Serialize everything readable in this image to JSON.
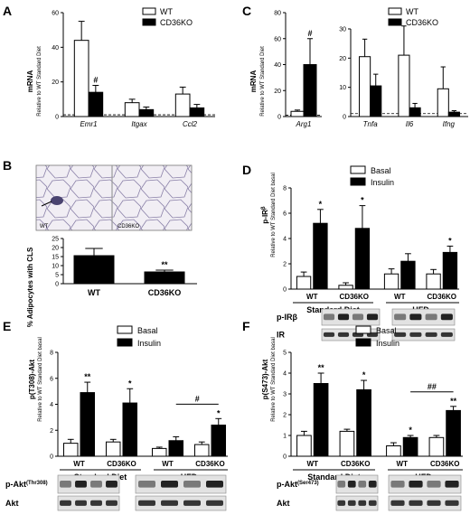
{
  "panels": {
    "A": {
      "letter": "A",
      "ylabel": "mRNA",
      "ylabel2": "Relative to WT Standard Diet",
      "legend": [
        "WT",
        "CD36KO"
      ]
    },
    "B": {
      "letter": "B",
      "ylabel": "% Adipocytes with CLS",
      "micro_wt": "WT",
      "micro_ko": "CD36KO"
    },
    "C": {
      "letter": "C",
      "ylabel": "mRNA",
      "ylabel2": "Relative to WT Standard Diet",
      "legend": [
        "WT",
        "CD36KO"
      ]
    },
    "D": {
      "letter": "D",
      "ylabel": "p-IR",
      "ylabel_sup": "β",
      "ylabel2": "Relative to WT Standard Diet basal",
      "legend": [
        "Basal",
        "Insulin"
      ],
      "groups": [
        "Standard Diet",
        "HFD"
      ],
      "blots": [
        "p-IRβ",
        "IR"
      ]
    },
    "E": {
      "letter": "E",
      "ylabel": "p(T308)-Akt",
      "ylabel2": "Relative to WT Standard Diet basal",
      "legend": [
        "Basal",
        "Insulin"
      ],
      "groups": [
        "Standard Diet",
        "HFD"
      ],
      "blots": [
        "p-Akt",
        "Akt"
      ],
      "blot_sup": "(Thr308)"
    },
    "F": {
      "letter": "F",
      "ylabel": "p(S473)-Akt",
      "ylabel2": "Relative to WT Standard Diet basal",
      "legend": [
        "Basal",
        "Insulin"
      ],
      "groups": [
        "Standard Diet",
        "HFD"
      ],
      "blots": [
        "p-Akt",
        "Akt"
      ],
      "blot_sup": "(Ser473)"
    }
  },
  "colors": {
    "wt": "#ffffff",
    "ko": "#000000",
    "stroke": "#000000",
    "blot_bg": "#e2e2e2",
    "band": "#222222"
  },
  "chart_data": [
    {
      "panel": "A",
      "type": "bar",
      "categories": [
        "Emr1",
        "Itgax",
        "Ccl2"
      ],
      "series": [
        {
          "name": "WT",
          "values": [
            44,
            8,
            13
          ],
          "errors": [
            11,
            2,
            4
          ]
        },
        {
          "name": "CD36KO",
          "values": [
            14,
            4,
            5
          ],
          "errors": [
            4,
            1.5,
            2
          ]
        }
      ],
      "ylim": [
        0,
        60
      ],
      "yticks": [
        0,
        20,
        40,
        60
      ],
      "annotations": [
        "#"
      ]
    },
    {
      "panel": "B",
      "type": "bar",
      "categories": [
        "WT",
        "CD36KO"
      ],
      "values": [
        15.5,
        6.5
      ],
      "errors": [
        4,
        1
      ],
      "ylim": [
        0,
        25
      ],
      "yticks": [
        0,
        5,
        10,
        15,
        20,
        25
      ],
      "annotations": [
        "**"
      ]
    },
    {
      "panel": "C1",
      "type": "bar",
      "categories": [
        "Arg1"
      ],
      "series": [
        {
          "name": "WT",
          "values": [
            4
          ],
          "errors": [
            1
          ]
        },
        {
          "name": "CD36KO",
          "values": [
            40
          ],
          "errors": [
            20
          ]
        }
      ],
      "ylim": [
        0,
        80
      ],
      "yticks": [
        0,
        20,
        40,
        60,
        80
      ],
      "annotations": [
        "#"
      ]
    },
    {
      "panel": "C2",
      "type": "bar",
      "categories": [
        "Tnfa",
        "Il6",
        "Ifng"
      ],
      "series": [
        {
          "name": "WT",
          "values": [
            20.5,
            21,
            9.5
          ],
          "errors": [
            6,
            10,
            7.5
          ]
        },
        {
          "name": "CD36KO",
          "values": [
            10.5,
            3,
            1.5
          ],
          "errors": [
            4,
            1.5,
            0.5
          ]
        }
      ],
      "ylim": [
        0,
        30
      ],
      "yticks": [
        0,
        10,
        20,
        30
      ]
    },
    {
      "panel": "D",
      "type": "bar",
      "categories": [
        "WT",
        "CD36KO",
        "WT",
        "CD36KO"
      ],
      "series": [
        {
          "name": "Basal",
          "values": [
            1,
            0.3,
            1.2,
            1.2
          ],
          "errors": [
            0.35,
            0.2,
            0.4,
            0.35
          ]
        },
        {
          "name": "Insulin",
          "values": [
            5.2,
            4.8,
            2.2,
            2.9
          ],
          "errors": [
            1.1,
            1.8,
            0.6,
            0.5
          ]
        }
      ],
      "ylim": [
        0,
        8
      ],
      "yticks": [
        0,
        2,
        4,
        6,
        8
      ],
      "annotations": [
        "*",
        "*",
        "*"
      ]
    },
    {
      "panel": "E",
      "type": "bar",
      "categories": [
        "WT",
        "CD36KO",
        "WT",
        "CD36KO"
      ],
      "series": [
        {
          "name": "Basal",
          "values": [
            1,
            1.1,
            0.6,
            0.9
          ],
          "errors": [
            0.3,
            0.2,
            0.1,
            0.2
          ]
        },
        {
          "name": "Insulin",
          "values": [
            4.9,
            4.1,
            1.2,
            2.4
          ],
          "errors": [
            0.8,
            1.1,
            0.3,
            0.5
          ]
        }
      ],
      "ylim": [
        0,
        8
      ],
      "yticks": [
        0,
        2,
        4,
        6,
        8
      ],
      "annotations": [
        "**",
        "*",
        "*",
        "#"
      ]
    },
    {
      "panel": "F",
      "type": "bar",
      "categories": [
        "WT",
        "CD36KO",
        "WT",
        "CD36KO"
      ],
      "series": [
        {
          "name": "Basal",
          "values": [
            1,
            1.2,
            0.5,
            0.9
          ],
          "errors": [
            0.2,
            0.1,
            0.15,
            0.1
          ]
        },
        {
          "name": "Insulin",
          "values": [
            3.5,
            3.2,
            0.9,
            2.2
          ],
          "errors": [
            0.5,
            0.45,
            0.1,
            0.2
          ]
        }
      ],
      "ylim": [
        0,
        5
      ],
      "yticks": [
        0,
        1,
        2,
        3,
        4,
        5
      ],
      "annotations": [
        "**",
        "*",
        "*",
        "**",
        "##"
      ]
    }
  ]
}
